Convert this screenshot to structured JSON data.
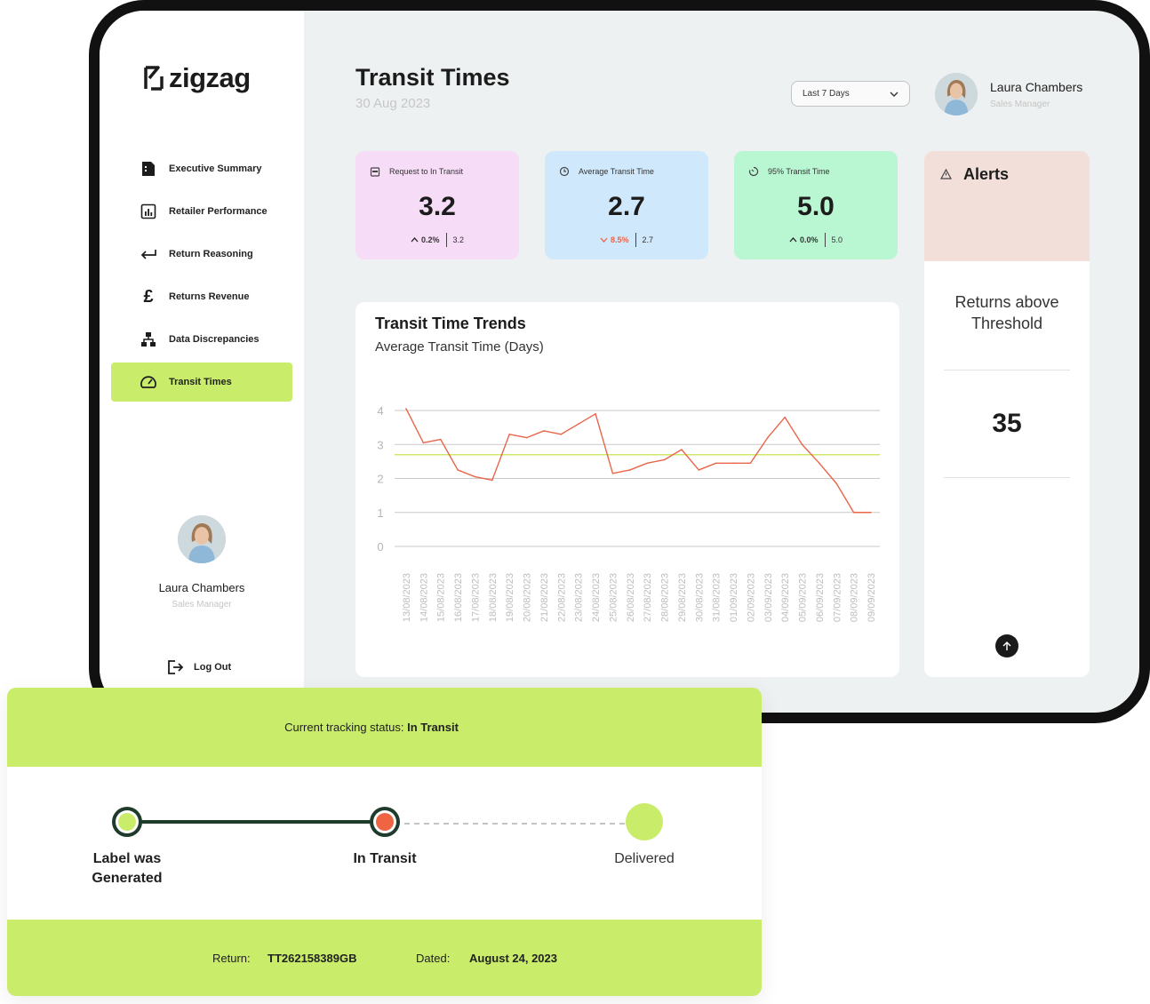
{
  "app": {
    "brand": "zigzag"
  },
  "sidebar": {
    "items": [
      {
        "label": "Executive Summary",
        "icon": "document-icon"
      },
      {
        "label": "Retailer Performance",
        "icon": "bar-chart-icon"
      },
      {
        "label": "Return Reasoning",
        "icon": "return-arrow-icon"
      },
      {
        "label": "Returns Revenue",
        "icon": "pound-icon"
      },
      {
        "label": "Data Discrepancies",
        "icon": "hierarchy-icon"
      },
      {
        "label": "Transit Times",
        "icon": "speedometer-icon",
        "active": true
      }
    ],
    "profile": {
      "name": "Laura Chambers",
      "role": "Sales Manager"
    },
    "logout_label": "Log Out"
  },
  "header": {
    "title": "Transit Times",
    "date": "30 Aug 2023",
    "range_select": "Last 7 Days",
    "user": {
      "name": "Laura Chambers",
      "role": "Sales Manager"
    }
  },
  "kpis": [
    {
      "label": "Request to In Transit",
      "value": "3.2",
      "change": "0.2%",
      "direction": "up",
      "previous": "3.2",
      "bg": "#f6dcf6",
      "icon": "calendar-icon"
    },
    {
      "label": "Average Transit Time",
      "value": "2.7",
      "change": "8.5%",
      "direction": "down",
      "previous": "2.7",
      "bg": "#cfe8fb",
      "icon": "clock-icon"
    },
    {
      "label": "95% Transit Time",
      "value": "5.0",
      "change": "0.0%",
      "direction": "up",
      "previous": "5.0",
      "bg": "#b9f6d2",
      "icon": "timer-icon"
    }
  ],
  "alerts": {
    "title": "Alerts",
    "label": "Returns above Threshold",
    "value": "35"
  },
  "chart": {
    "title": "Transit Time Trends",
    "subtitle": "Average Transit Time (Days)"
  },
  "chart_data": {
    "type": "line",
    "title": "Transit Time Trends",
    "subtitle": "Average Transit Time (Days)",
    "ylim": [
      0,
      4
    ],
    "yticks": [
      "0",
      "1",
      "2",
      "3",
      "4"
    ],
    "grid": true,
    "x": [
      "13/08/2023",
      "14/08/2023",
      "15/08/2023",
      "16/08/2023",
      "17/08/2023",
      "18/08/2023",
      "19/08/2023",
      "20/08/2023",
      "21/08/2023",
      "22/08/2023",
      "23/08/2023",
      "24/08/2023",
      "25/08/2023",
      "26/08/2023",
      "27/08/2023",
      "28/08/2023",
      "29/08/2023",
      "30/08/2023",
      "31/08/2023",
      "01/09/2023",
      "02/09/2023",
      "03/09/2023",
      "04/09/2023",
      "05/09/2023",
      "06/09/2023",
      "07/09/2023",
      "08/09/2023",
      "09/09/2023"
    ],
    "series": [
      {
        "values": [
          4.05,
          3.05,
          3.15,
          2.25,
          2.05,
          1.95,
          3.3,
          3.2,
          3.4,
          3.3,
          3.6,
          3.9,
          2.15,
          2.25,
          2.45,
          2.55,
          2.85,
          2.25,
          2.45,
          2.45,
          2.45,
          3.2,
          3.8,
          3.0,
          2.45,
          1.85,
          1.0,
          1.0
        ],
        "color": "#e8664a"
      }
    ],
    "reference_line": {
      "value": 2.7,
      "color": "#cde86a"
    }
  },
  "tracking": {
    "status_prefix": "Current tracking status:",
    "status_value": "In Transit",
    "steps": [
      {
        "label_line1": "Label was",
        "label_line2": "Generated",
        "state": "done"
      },
      {
        "label_line1": "In Transit",
        "label_line2": "",
        "state": "current"
      },
      {
        "label_line1": "Delivered",
        "label_line2": "",
        "state": "pending"
      }
    ],
    "return_label": "Return:",
    "return_value": "TT262158389GB",
    "dated_label": "Dated:",
    "dated_value": "August 24, 2023"
  },
  "colors": {
    "accent": "#c9ec6a",
    "line": "#e8664a",
    "dark_green": "#1e3b2c",
    "current_dot": "#ef6443"
  }
}
